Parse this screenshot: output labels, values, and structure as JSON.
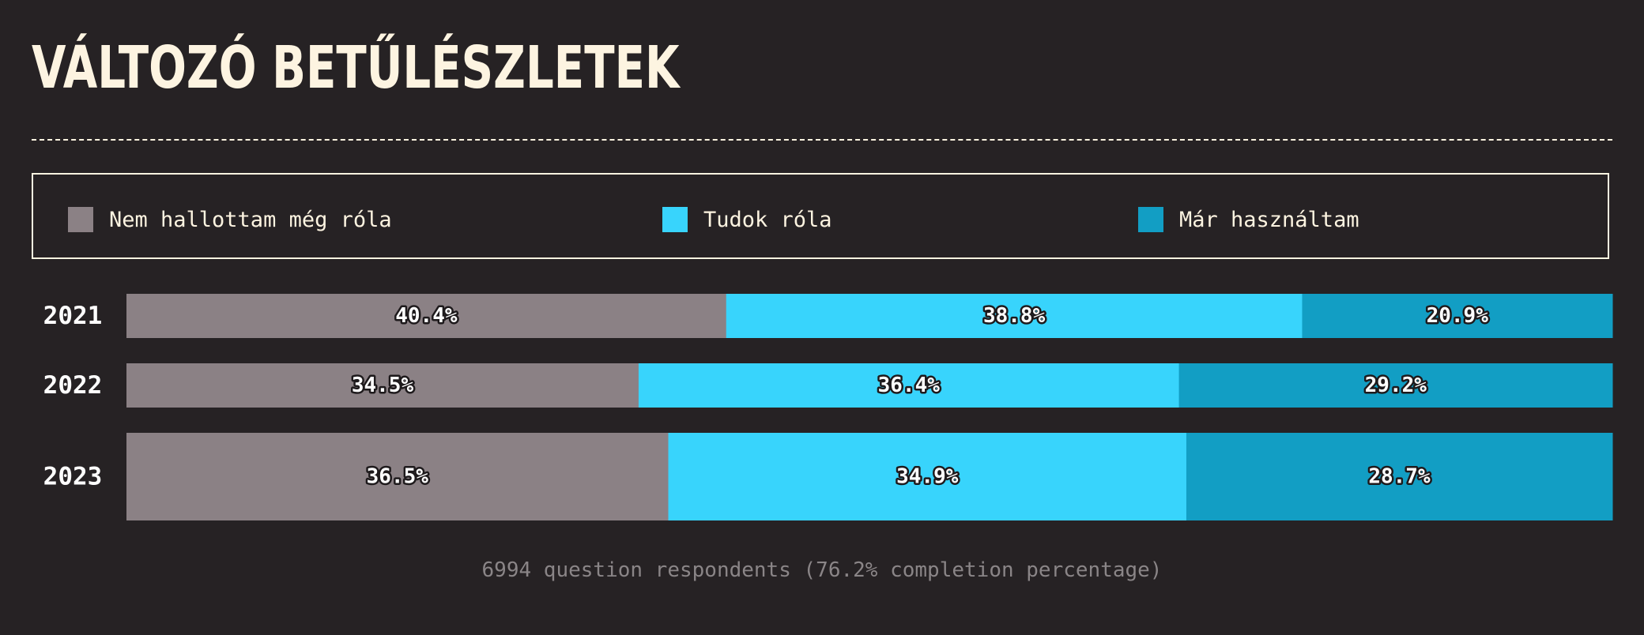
{
  "title": "VÁLTOZÓ BETŰLÉSZLETEK",
  "footnote": "6994 question respondents (76.2% completion percentage)",
  "colors": {
    "background": "#262224",
    "title": "#fdf4e1",
    "series": [
      "#8b8185",
      "#38d4fc",
      "#129ec4"
    ]
  },
  "chart_data": {
    "type": "bar",
    "orientation": "horizontal",
    "stacked": true,
    "normalized_percent": true,
    "categories": [
      "2021",
      "2022",
      "2023"
    ],
    "series": [
      {
        "name": "Nem hallottam még róla",
        "color": "#8b8185",
        "values": [
          40.4,
          34.5,
          36.5
        ],
        "labels": [
          "40.4%",
          "34.5%",
          "36.5%"
        ]
      },
      {
        "name": "Tudok róla",
        "color": "#38d4fc",
        "values": [
          38.8,
          36.4,
          34.9
        ],
        "labels": [
          "38.8%",
          "36.4%",
          "34.9%"
        ]
      },
      {
        "name": "Már használtam",
        "color": "#129ec4",
        "values": [
          20.9,
          29.2,
          28.7
        ],
        "labels": [
          "20.9%",
          "29.2%",
          "28.7%"
        ]
      }
    ],
    "legend": "top",
    "grid": false
  }
}
